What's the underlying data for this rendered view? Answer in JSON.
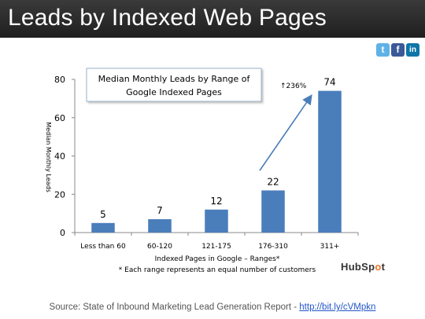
{
  "header": {
    "title": "Leads by Indexed Web Pages"
  },
  "social": {
    "twitter": "t",
    "facebook": "f",
    "linkedin": "in"
  },
  "chart_data": {
    "type": "bar",
    "title": "Median Monthly Leads by Range of Google Indexed Pages",
    "title_lines": [
      "Median Monthly Leads by Range of",
      "Google Indexed Pages"
    ],
    "categories": [
      "Less than 60",
      "60-120",
      "121-175",
      "176-310",
      "311+"
    ],
    "values": [
      5,
      7,
      12,
      22,
      74
    ],
    "ylabel": "Median Monthly Leads",
    "xlabel": "Indexed Pages in Google – Ranges*",
    "footnote": "* Each range represents an equal number of customers",
    "ylim": [
      0,
      80
    ],
    "yticks": [
      0,
      20,
      40,
      60,
      80
    ],
    "annotation": "↑236%",
    "bar_color": "#4a7ebb",
    "grid": false
  },
  "brand": {
    "name_pre": "HubSp",
    "name_o": "o",
    "name_post": "t"
  },
  "source": {
    "text": "Source: State of Inbound Marketing Lead Generation Report - ",
    "link": "http://bit.ly/cVMpkn"
  }
}
